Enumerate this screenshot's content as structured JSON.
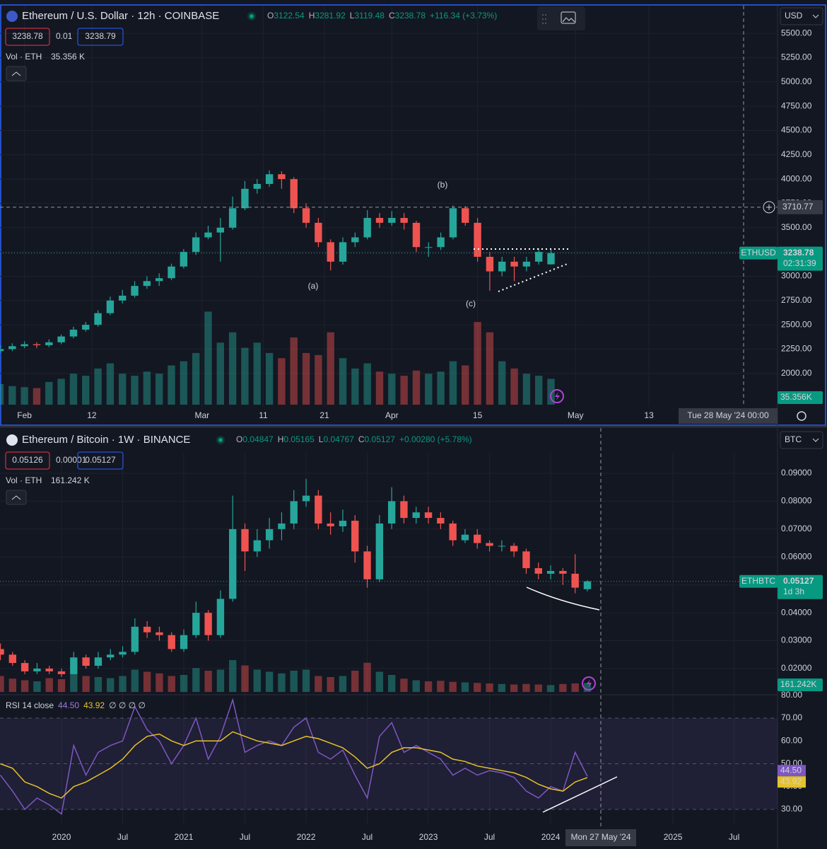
{
  "chart_data": [
    {
      "type": "candlestick",
      "title": "Ethereum / U.S. Dollar · 12h · COINBASE",
      "ohlc_legend": [
        {
          "label": "O",
          "value": 3122.54
        },
        {
          "label": "H",
          "value": 3281.92
        },
        {
          "label": "L",
          "value": 3119.48
        },
        {
          "label": "C",
          "value": 3238.78
        }
      ],
      "change": "+116.34 (+3.73%)",
      "bid": "3238.78",
      "spread": "0.01",
      "ask": "3238.79",
      "volume_label": "Vol · ETH",
      "volume_value": "35.356 K",
      "volume_tag": "35.356K",
      "currency": "USD",
      "symbol_tag": "ETHUSD",
      "countdown": "02:31:39",
      "crosshair_price": 3710.77,
      "crosshair_date": "Tue 28 May '24  00:00",
      "annotations": [
        "(a)",
        "(b)",
        "(c)"
      ],
      "up_color": "#26a69a",
      "down_color": "#ef5350",
      "grid": true,
      "xlim": [
        27,
        154
      ],
      "xticks": [
        {
          "value": 31,
          "label": "Feb"
        },
        {
          "value": 42,
          "label": "12"
        },
        {
          "value": 60,
          "label": "Mar"
        },
        {
          "value": 70,
          "label": "11"
        },
        {
          "value": 80,
          "label": "21"
        },
        {
          "value": 91,
          "label": "Apr"
        },
        {
          "value": 105,
          "label": "15"
        },
        {
          "value": 121,
          "label": "May"
        },
        {
          "value": 133,
          "label": "13"
        }
      ],
      "ylim": [
        1656,
        5785
      ],
      "yticks": [
        {
          "value": 2000,
          "label": "2000.00"
        },
        {
          "value": 2250,
          "label": "2250.00"
        },
        {
          "value": 2500,
          "label": "2500.00"
        },
        {
          "value": 2750,
          "label": "2750.00"
        },
        {
          "value": 3000,
          "label": "3000.00"
        },
        {
          "value": 3250,
          "label": "3250.00"
        },
        {
          "value": 3500,
          "label": "3500.00"
        },
        {
          "value": 3750,
          "label": "3750.00"
        },
        {
          "value": 4000,
          "label": "4000.00"
        },
        {
          "value": 4250,
          "label": "4250.00"
        },
        {
          "value": 4500,
          "label": "4500.00"
        },
        {
          "value": 4750,
          "label": "4750.00"
        },
        {
          "value": 5000,
          "label": "5000.00"
        },
        {
          "value": 5250,
          "label": "5250.00"
        },
        {
          "value": 5500,
          "label": "5500.00"
        }
      ],
      "x": [
        27,
        29,
        31,
        33,
        35,
        37,
        39,
        41,
        43,
        45,
        47,
        49,
        51,
        53,
        55,
        57,
        59,
        61,
        63,
        65,
        67,
        69,
        71,
        73,
        75,
        77,
        79,
        81,
        83,
        85,
        87,
        89,
        91,
        93,
        95,
        97,
        99,
        101,
        103,
        105,
        107,
        109,
        111,
        113,
        115,
        117
      ],
      "ohlc": [
        [
          2230,
          2290,
          2210,
          2250
        ],
        [
          2250,
          2310,
          2230,
          2280
        ],
        [
          2280,
          2330,
          2260,
          2300
        ],
        [
          2300,
          2320,
          2260,
          2290
        ],
        [
          2290,
          2350,
          2270,
          2320
        ],
        [
          2320,
          2400,
          2300,
          2380
        ],
        [
          2380,
          2480,
          2360,
          2450
        ],
        [
          2450,
          2530,
          2430,
          2500
        ],
        [
          2500,
          2650,
          2480,
          2620
        ],
        [
          2620,
          2790,
          2600,
          2750
        ],
        [
          2750,
          2860,
          2720,
          2800
        ],
        [
          2800,
          2950,
          2780,
          2900
        ],
        [
          2900,
          3000,
          2870,
          2950
        ],
        [
          2950,
          3030,
          2900,
          2980
        ],
        [
          2980,
          3130,
          2960,
          3100
        ],
        [
          3100,
          3280,
          3080,
          3250
        ],
        [
          3250,
          3450,
          3220,
          3400
        ],
        [
          3400,
          3520,
          3380,
          3450
        ],
        [
          3450,
          3600,
          3150,
          3500
        ],
        [
          3500,
          3820,
          3480,
          3700
        ],
        [
          3700,
          3980,
          3680,
          3900
        ],
        [
          3900,
          4000,
          3850,
          3950
        ],
        [
          3950,
          4090,
          3920,
          4050
        ],
        [
          4050,
          4080,
          3900,
          4000
        ],
        [
          4000,
          4020,
          3650,
          3700
        ],
        [
          3700,
          3750,
          3500,
          3550
        ],
        [
          3550,
          3600,
          3300,
          3350
        ],
        [
          3350,
          3380,
          3060,
          3150
        ],
        [
          3150,
          3400,
          3120,
          3350
        ],
        [
          3350,
          3450,
          3300,
          3400
        ],
        [
          3400,
          3680,
          3380,
          3600
        ],
        [
          3600,
          3650,
          3500,
          3550
        ],
        [
          3550,
          3670,
          3520,
          3600
        ],
        [
          3600,
          3650,
          3480,
          3550
        ],
        [
          3550,
          3570,
          3250,
          3300
        ],
        [
          3300,
          3350,
          3200,
          3300
        ],
        [
          3300,
          3450,
          3270,
          3400
        ],
        [
          3400,
          3730,
          3380,
          3700
        ],
        [
          3700,
          3720,
          3520,
          3550
        ],
        [
          3550,
          3600,
          3150,
          3200
        ],
        [
          3200,
          3250,
          2850,
          3050
        ],
        [
          3050,
          3200,
          3000,
          3150
        ],
        [
          3150,
          3200,
          2950,
          3100
        ],
        [
          3100,
          3200,
          3050,
          3150
        ],
        [
          3150,
          3290,
          3120,
          3250
        ],
        [
          3122.54,
          3281.92,
          3119.48,
          3238.78
        ]
      ],
      "volume": [
        200,
        180,
        170,
        160,
        220,
        250,
        300,
        280,
        350,
        400,
        300,
        280,
        320,
        300,
        380,
        420,
        500,
        900,
        600,
        700,
        550,
        600,
        500,
        450,
        650,
        500,
        480,
        700,
        450,
        350,
        400,
        320,
        300,
        280,
        330,
        300,
        320,
        420,
        380,
        800,
        700,
        420,
        350,
        300,
        280,
        250
      ],
      "volume_ylim": [
        0,
        1300
      ]
    },
    {
      "type": "candlestick",
      "title": "Ethereum / Bitcoin · 1W · BINANCE",
      "ohlc_legend": [
        {
          "label": "O",
          "value": 0.04847
        },
        {
          "label": "H",
          "value": 0.05165
        },
        {
          "label": "L",
          "value": 0.04767
        },
        {
          "label": "C",
          "value": 0.05127
        }
      ],
      "change": "+0.00280 (+5.78%)",
      "bid": "0.05126",
      "spread": "0.00001",
      "ask": "0.05127",
      "volume_label": "Vol · ETH",
      "volume_value": "161.242 K",
      "volume_tag": "161.242K",
      "currency": "BTC",
      "symbol_tag": "ETHBTC",
      "countdown": "1d 3h",
      "crosshair_date": "Mon 27 May '24",
      "up_color": "#26a69a",
      "down_color": "#ef5350",
      "grid": true,
      "xlim": [
        2019.497,
        2025.855
      ],
      "xticks": [
        2020,
        {
          "value": 2020.5,
          "label": "Jul"
        },
        2021,
        {
          "value": 2021.5,
          "label": "Jul"
        },
        2022,
        {
          "value": 2022.5,
          "label": "Jul"
        },
        2023,
        {
          "value": 2023.5,
          "label": "Jul"
        },
        2024,
        2025,
        {
          "value": 2025.5,
          "label": "Jul"
        }
      ],
      "ylim": [
        0.01112,
        0.09735
      ],
      "yticks": [
        {
          "value": 0.02,
          "label": "0.02000"
        },
        {
          "value": 0.03,
          "label": "0.03000"
        },
        {
          "value": 0.04,
          "label": "0.04000"
        },
        {
          "value": 0.05,
          "label": "0.05000"
        },
        {
          "value": 0.06,
          "label": "0.06000"
        },
        {
          "value": 0.07,
          "label": "0.07000"
        },
        {
          "value": 0.08,
          "label": "0.08000"
        },
        {
          "value": 0.09,
          "label": "0.09000"
        }
      ],
      "x": [
        2019.5,
        2019.6,
        2019.7,
        2019.8,
        2019.9,
        2020.0,
        2020.1,
        2020.2,
        2020.3,
        2020.4,
        2020.5,
        2020.6,
        2020.7,
        2020.8,
        2020.9,
        2021.0,
        2021.1,
        2021.2,
        2021.3,
        2021.4,
        2021.5,
        2021.6,
        2021.7,
        2021.8,
        2021.9,
        2022.0,
        2022.1,
        2022.2,
        2022.3,
        2022.4,
        2022.5,
        2022.6,
        2022.7,
        2022.8,
        2022.9,
        2023.0,
        2023.1,
        2023.2,
        2023.3,
        2023.4,
        2023.5,
        2023.6,
        2023.7,
        2023.8,
        2023.9,
        2024.0,
        2024.1,
        2024.2,
        2024.3
      ],
      "ohlc": [
        [
          0.027,
          0.029,
          0.023,
          0.025
        ],
        [
          0.025,
          0.026,
          0.021,
          0.022
        ],
        [
          0.022,
          0.023,
          0.018,
          0.019
        ],
        [
          0.019,
          0.022,
          0.018,
          0.02
        ],
        [
          0.02,
          0.021,
          0.018,
          0.019
        ],
        [
          0.019,
          0.02,
          0.017,
          0.018
        ],
        [
          0.018,
          0.026,
          0.018,
          0.024
        ],
        [
          0.024,
          0.025,
          0.02,
          0.021
        ],
        [
          0.021,
          0.026,
          0.02,
          0.024
        ],
        [
          0.024,
          0.027,
          0.023,
          0.025
        ],
        [
          0.025,
          0.028,
          0.024,
          0.026
        ],
        [
          0.026,
          0.038,
          0.025,
          0.035
        ],
        [
          0.035,
          0.037,
          0.031,
          0.033
        ],
        [
          0.033,
          0.035,
          0.03,
          0.032
        ],
        [
          0.032,
          0.033,
          0.026,
          0.027
        ],
        [
          0.027,
          0.034,
          0.026,
          0.032
        ],
        [
          0.032,
          0.044,
          0.031,
          0.04
        ],
        [
          0.04,
          0.041,
          0.03,
          0.032
        ],
        [
          0.032,
          0.048,
          0.031,
          0.045
        ],
        [
          0.045,
          0.082,
          0.044,
          0.07
        ],
        [
          0.07,
          0.072,
          0.055,
          0.062
        ],
        [
          0.062,
          0.07,
          0.06,
          0.066
        ],
        [
          0.066,
          0.074,
          0.063,
          0.07
        ],
        [
          0.07,
          0.076,
          0.066,
          0.072
        ],
        [
          0.072,
          0.084,
          0.07,
          0.08
        ],
        [
          0.08,
          0.088,
          0.078,
          0.082
        ],
        [
          0.082,
          0.084,
          0.07,
          0.072
        ],
        [
          0.072,
          0.076,
          0.068,
          0.071
        ],
        [
          0.071,
          0.077,
          0.069,
          0.073
        ],
        [
          0.073,
          0.075,
          0.058,
          0.062
        ],
        [
          0.062,
          0.064,
          0.049,
          0.052
        ],
        [
          0.052,
          0.075,
          0.051,
          0.072
        ],
        [
          0.072,
          0.085,
          0.07,
          0.08
        ],
        [
          0.08,
          0.082,
          0.072,
          0.074
        ],
        [
          0.074,
          0.078,
          0.072,
          0.076
        ],
        [
          0.076,
          0.078,
          0.072,
          0.074
        ],
        [
          0.074,
          0.076,
          0.07,
          0.072
        ],
        [
          0.072,
          0.073,
          0.064,
          0.066
        ],
        [
          0.066,
          0.07,
          0.065,
          0.068
        ],
        [
          0.068,
          0.07,
          0.063,
          0.065
        ],
        [
          0.065,
          0.066,
          0.062,
          0.064
        ],
        [
          0.064,
          0.066,
          0.062,
          0.064
        ],
        [
          0.064,
          0.065,
          0.06,
          0.062
        ],
        [
          0.062,
          0.063,
          0.054,
          0.056
        ],
        [
          0.056,
          0.058,
          0.052,
          0.054
        ],
        [
          0.054,
          0.057,
          0.052,
          0.055
        ],
        [
          0.055,
          0.056,
          0.05,
          0.054
        ],
        [
          0.054,
          0.061,
          0.047,
          0.049
        ],
        [
          0.04847,
          0.05165,
          0.04767,
          0.05127
        ]
      ],
      "volume": [
        300,
        250,
        220,
        200,
        260,
        240,
        350,
        300,
        280,
        260,
        300,
        420,
        380,
        350,
        300,
        320,
        450,
        400,
        420,
        600,
        500,
        420,
        380,
        350,
        400,
        420,
        300,
        280,
        300,
        400,
        550,
        380,
        320,
        250,
        220,
        200,
        210,
        190,
        180,
        170,
        160,
        150,
        140,
        150,
        140,
        130,
        150,
        160,
        170
      ],
      "volume_ylim": [
        0,
        2400
      ],
      "rsi": {
        "title": "RSI 14 close",
        "value_label": "44.50",
        "ma_label": "43.92",
        "extras": "∅ ∅ ∅ ∅",
        "color": "#7e57c2",
        "ma_color": "#e6c229",
        "ylim": [
          23.5,
          79.9
        ],
        "yticks": [
          {
            "value": 30,
            "label": "30.00"
          },
          {
            "value": 40,
            "label": "40.00"
          },
          {
            "value": 50,
            "label": "50.00"
          },
          {
            "value": 60,
            "label": "60.00"
          },
          {
            "value": 70,
            "label": "70.00"
          },
          {
            "value": 80,
            "label": "80.00"
          }
        ],
        "values": [
          45,
          38,
          30,
          35,
          32,
          28,
          58,
          45,
          55,
          58,
          60,
          75,
          65,
          60,
          50,
          58,
          70,
          52,
          62,
          78,
          55,
          58,
          60,
          58,
          66,
          70,
          55,
          52,
          56,
          45,
          35,
          62,
          68,
          55,
          58,
          55,
          52,
          45,
          48,
          45,
          47,
          46,
          44,
          38,
          35,
          40,
          38,
          55,
          44.5
        ],
        "ma": [
          50,
          48,
          42,
          40,
          37,
          35,
          40,
          42,
          45,
          48,
          52,
          58,
          62,
          63,
          60,
          58,
          60,
          60,
          60,
          64,
          62,
          60,
          59,
          58,
          60,
          62,
          61,
          59,
          57,
          53,
          48,
          50,
          55,
          57,
          57,
          56,
          55,
          52,
          51,
          49,
          48,
          47,
          46,
          44,
          41,
          39,
          38,
          42,
          43.92
        ]
      }
    }
  ]
}
